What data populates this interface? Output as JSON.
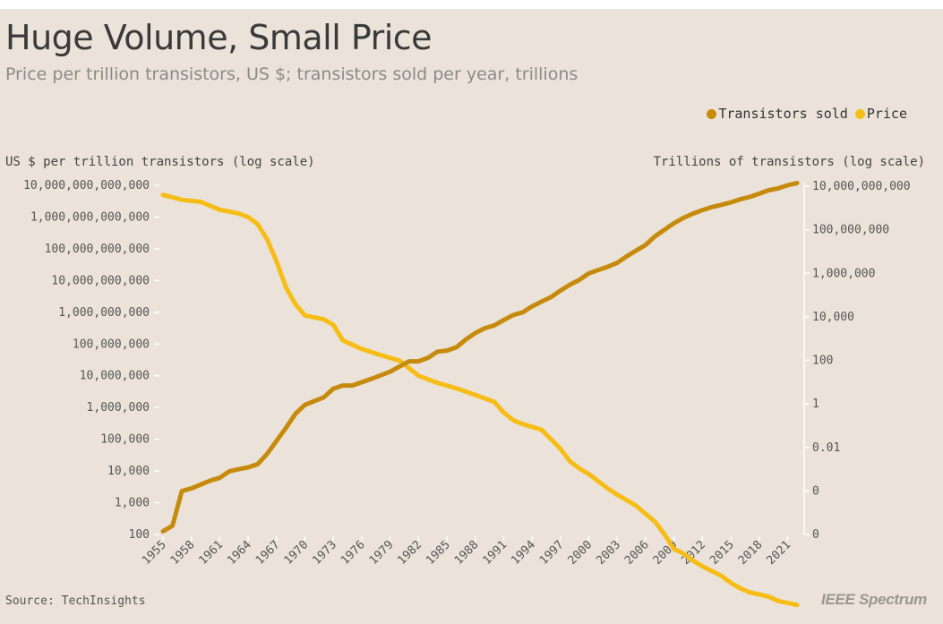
{
  "header": {
    "title": "Huge Volume, Small Price",
    "subtitle": "Price per trillion transistors, US $; transistors sold per year, trillions"
  },
  "legend": {
    "items": [
      {
        "label": "Transistors sold",
        "color": "#c68a0d"
      },
      {
        "label": "Price",
        "color": "#f6bd16"
      }
    ]
  },
  "footer": {
    "source": "Source: TechInsights",
    "brand": "IEEE Spectrum"
  },
  "chart_data": {
    "type": "line",
    "left_axis_label": "US $ per trillion transistors (log scale)",
    "right_axis_label": "Trillions of transistors (log scale)",
    "left_scale": "log",
    "right_scale": "log",
    "left_ticks": [
      "100",
      "1,000",
      "10,000",
      "100,000",
      "1,000,000",
      "10,000,000",
      "100,000,000",
      "1,000,000,000",
      "10,000,000,000",
      "100,000,000,000",
      "1,000,000,000,000",
      "10,000,000,000,000"
    ],
    "left_tick_values": [
      100.0,
      1000.0,
      10000.0,
      100000.0,
      1000000.0,
      10000000.0,
      100000000.0,
      1000000000.0,
      10000000000.0,
      100000000000.0,
      1000000000000.0,
      10000000000000.0
    ],
    "right_ticks": [
      "0",
      "0",
      "0.01",
      "1",
      "100",
      "10,000",
      "1,000,000",
      "100,000,000",
      "10,000,000,000"
    ],
    "right_tick_values": [
      1e-06,
      0.0001,
      0.01,
      1,
      100.0,
      10000.0,
      1000000.0,
      100000000.0,
      10000000000.0
    ],
    "x_ticks": [
      "1955",
      "1958",
      "1961",
      "1964",
      "1967",
      "1970",
      "1973",
      "1976",
      "1979",
      "1982",
      "1985",
      "1988",
      "1991",
      "1994",
      "1997",
      "2000",
      "2003",
      "2006",
      "2009",
      "2012",
      "2015",
      "2018",
      "2021"
    ],
    "x_range": [
      1955,
      2022
    ],
    "series": [
      {
        "name": "Price",
        "axis": "left",
        "color": "#f6bd16",
        "x": [
          1955,
          1957,
          1959,
          1961,
          1963,
          1964,
          1965,
          1966,
          1967,
          1968,
          1969,
          1970,
          1972,
          1973,
          1974,
          1976,
          1978,
          1980,
          1982,
          1984,
          1986,
          1988,
          1990,
          1991,
          1992,
          1993,
          1995,
          1996,
          1997,
          1998,
          1999,
          2000,
          2002,
          2003,
          2004,
          2005,
          2007,
          2008,
          2009,
          2010,
          2011,
          2012,
          2013,
          2014,
          2015,
          2016,
          2017,
          2018,
          2019,
          2020,
          2021,
          2022
        ],
        "y": [
          5000000000000.0,
          3500000000000.0,
          3000000000000.0,
          1700000000000.0,
          1300000000000.0,
          1000000000000.0,
          600000000000.0,
          200000000000.0,
          40000000000.0,
          6000000000.0,
          1800000000.0,
          800000000.0,
          600000000.0,
          400000000.0,
          130000000.0,
          70000000.0,
          45000000.0,
          30000000.0,
          10000000.0,
          6000000.0,
          4000000.0,
          2500000.0,
          1500000.0,
          700000.0,
          400000.0,
          300000.0,
          200000.0,
          100000.0,
          50000.0,
          20000.0,
          12000.0,
          8000.0,
          2800.0,
          1800.0,
          1200.0,
          800,
          250,
          100,
          35,
          25,
          15,
          10,
          7,
          5,
          3,
          2,
          1.5,
          1.3,
          1.1,
          0.8,
          0.7,
          0.6
        ]
      },
      {
        "name": "Transistors sold",
        "axis": "right",
        "color": "#c68a0d",
        "x": [
          1955,
          1956,
          1957,
          1958,
          1960,
          1961,
          1962,
          1963,
          1964,
          1965,
          1966,
          1967,
          1968,
          1969,
          1970,
          1972,
          1973,
          1974,
          1975,
          1977,
          1979,
          1981,
          1982,
          1983,
          1984,
          1985,
          1986,
          1987,
          1988,
          1989,
          1990,
          1991,
          1992,
          1993,
          1994,
          1995,
          1996,
          1997,
          1998,
          1999,
          2000,
          2002,
          2003,
          2004,
          2005,
          2006,
          2007,
          2008,
          2009,
          2010,
          2011,
          2012,
          2013,
          2014,
          2015,
          2016,
          2017,
          2018,
          2019,
          2020,
          2021,
          2022
        ],
        "y": [
          1.4e-06,
          2.5e-06,
          0.0001,
          0.00013,
          0.0003,
          0.0004,
          0.0008,
          0.001,
          0.0012,
          0.0017,
          0.005,
          0.02,
          0.08,
          0.35,
          0.9,
          2,
          5,
          7,
          7,
          14,
          30,
          90,
          90,
          130,
          250,
          280,
          400,
          900,
          1800,
          3000,
          4000,
          7000,
          12000.0,
          16000.0,
          30000.0,
          50000.0,
          80000.0,
          160000.0,
          300000.0,
          500000.0,
          1000000.0,
          2000000.0,
          3000000.0,
          6000000.0,
          11000000.0,
          20000000.0,
          50000000.0,
          100000000.0,
          200000000.0,
          350000000.0,
          550000000.0,
          800000000.0,
          1100000000.0,
          1400000000.0,
          1800000000.0,
          2500000000.0,
          3200000000.0,
          4500000000.0,
          6500000000.0,
          8000000000.0,
          11000000000.0,
          14000000000.0
        ]
      }
    ]
  }
}
